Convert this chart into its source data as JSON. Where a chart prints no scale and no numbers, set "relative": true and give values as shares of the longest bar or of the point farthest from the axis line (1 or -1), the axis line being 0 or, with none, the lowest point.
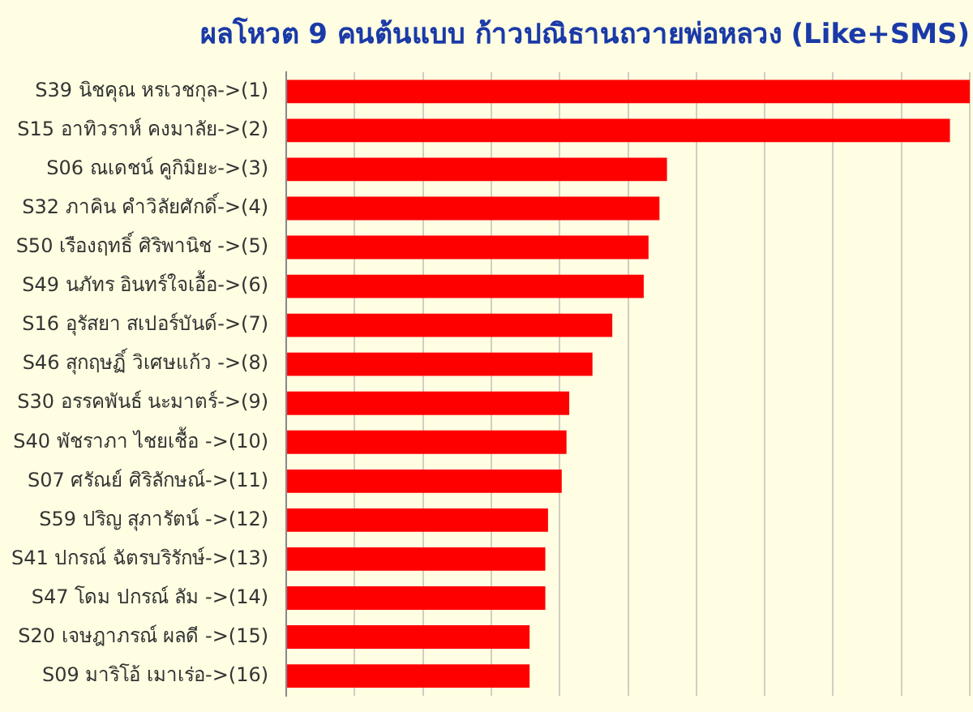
{
  "chart_data": {
    "type": "bar",
    "orientation": "horizontal",
    "relative": true,
    "grid": "x",
    "legend": false,
    "title": "ผลโหวต 9 คนต้นแบบ ก้าวปณิธานถวายพ่อหลวง (Like+SMS)",
    "categories": [
      "S39 นิชคุณ หรเวชกุล->(1)",
      "S15 อาทิวราห์ คงมาลัย->(2)",
      "S06 ณเดชน์ คูกิมิยะ->(3)",
      "S32 ภาคิน คำวิลัยศักดิ์->(4)",
      "S50 เรืองฤทธิ์ ศิริพานิช ->(5)",
      "S49 นภัทร อินทร์ใจเอื้อ->(6)",
      "S16 อุรัสยา สเปอร์บันด์->(7)",
      "S46 สุกฤษฏิ์ วิเศษแก้ว ->(8)",
      "S30 อรรคพันธ์ นะมาตร์->(9)",
      "S40 พัชราภา ไชยเชื้อ ->(10)",
      "S07 ศรัณย์ ศิริลักษณ์->(11)",
      "S59 ปริญ สุภารัตน์ ->(12)",
      "S41 ปกรณ์ ฉัตรบริรักษ์->(13)",
      "S47 โดม ปกรณ์ ลัม ->(14)",
      "S20 เจษฎาภรณ์ ผลดี ->(15)",
      "S09 มาริโอ้ เมาเร่อ->(16)"
    ],
    "series": [
      {
        "color": "#ff0000",
        "values": [
          1,
          0.971,
          0.557,
          0.546,
          0.53,
          0.523,
          0.477,
          0.448,
          0.414,
          0.41,
          0.403,
          0.383,
          0.379,
          0.379,
          0.356,
          0.356
        ]
      }
    ]
  }
}
